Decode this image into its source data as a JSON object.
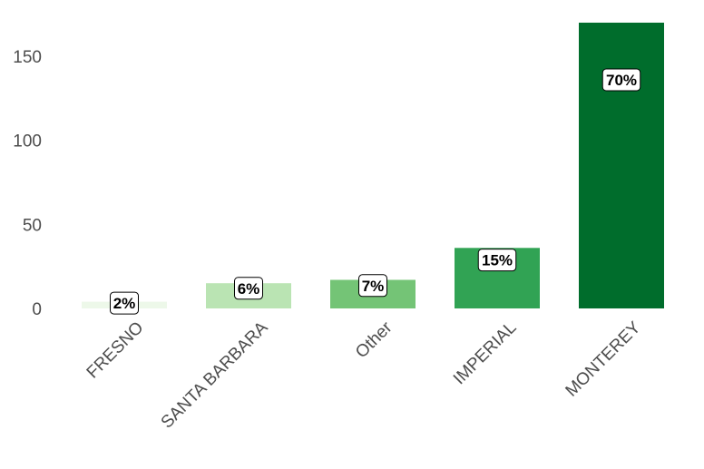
{
  "chart_data": {
    "type": "bar",
    "categories": [
      "FRESNO",
      "SANTA BARBARA",
      "Other",
      "IMPERIAL",
      "MONTEREY"
    ],
    "values": [
      4,
      15,
      17,
      36,
      170
    ],
    "data_labels": [
      "2%",
      "6%",
      "7%",
      "15%",
      "70%"
    ],
    "colors": [
      "#edf8e9",
      "#bae4b3",
      "#74c476",
      "#31a354",
      "#006d2c"
    ],
    "yticks": [
      0,
      50,
      100,
      150
    ],
    "ylim": [
      0,
      170
    ],
    "grid": false,
    "legend": "none",
    "title": "",
    "xlabel": "",
    "ylabel": ""
  }
}
